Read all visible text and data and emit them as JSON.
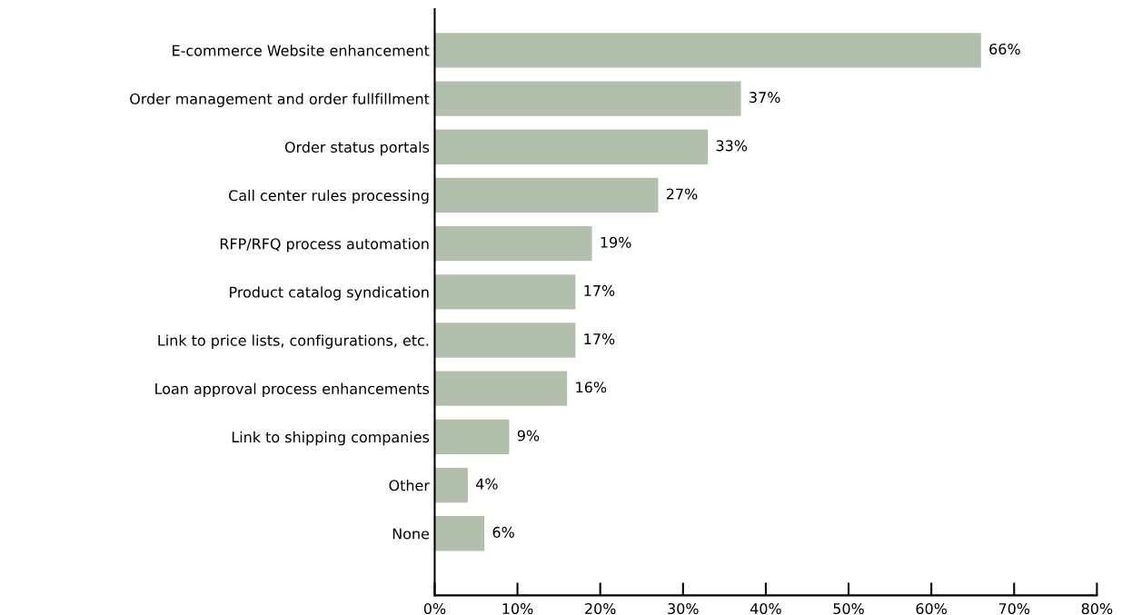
{
  "chart_data": {
    "type": "bar",
    "orientation": "horizontal",
    "categories": [
      "E-commerce Website enhancement",
      "Order management and order fullfillment",
      "Order status portals",
      "Call center rules processing",
      "RFP/RFQ process automation",
      "Product catalog syndication",
      "Link to price lists, configurations, etc.",
      "Loan approval process enhancements",
      "Link to shipping companies",
      "Other",
      "None"
    ],
    "values": [
      66,
      37,
      33,
      27,
      19,
      17,
      17,
      16,
      9,
      4,
      6
    ],
    "value_labels": [
      "66%",
      "37%",
      "33%",
      "27%",
      "19%",
      "17%",
      "17%",
      "16%",
      "9%",
      "4%",
      "6%"
    ],
    "color": "#b3bfad",
    "xlim": [
      0,
      80
    ],
    "xticks": [
      {
        "value": 0,
        "label": "0%"
      },
      {
        "value": 10,
        "label": "10%"
      },
      {
        "value": 20,
        "label": "20%"
      },
      {
        "value": 30,
        "label": "30%"
      },
      {
        "value": 40,
        "label": "40%"
      },
      {
        "value": 50,
        "label": "50%"
      },
      {
        "value": 60,
        "label": "60%"
      },
      {
        "value": 70,
        "label": "70%"
      },
      {
        "value": 80,
        "label": "80%"
      }
    ],
    "grid": false,
    "legend": false
  }
}
